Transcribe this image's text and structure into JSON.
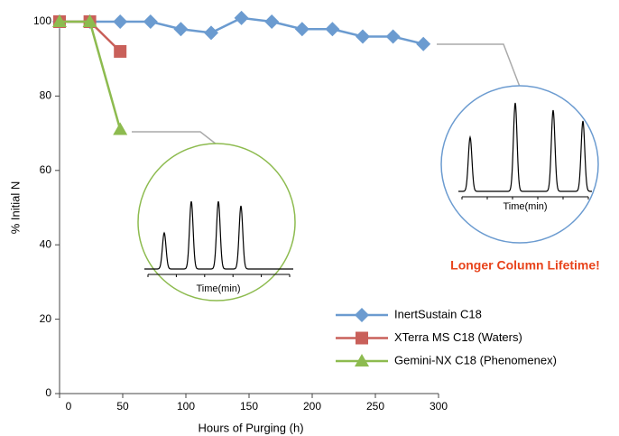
{
  "chart_data": {
    "type": "line",
    "x_label": "Hours of Purging (h)",
    "y_label": "% Initial N",
    "xlim": [
      0,
      300
    ],
    "xticks": [
      0,
      50,
      100,
      150,
      200,
      250,
      300
    ],
    "ylim": [
      0,
      100
    ],
    "yticks": [
      0,
      20,
      40,
      60,
      80,
      100
    ],
    "grid": false,
    "legend": "lower right",
    "series": [
      {
        "name": "InertSustain C18",
        "color": "#6b9bd0",
        "marker": "diamond",
        "x": [
          0,
          24,
          48,
          72,
          96,
          120,
          144,
          168,
          192,
          216,
          240,
          264,
          288
        ],
        "values": [
          100,
          100,
          100,
          100,
          98,
          97,
          101,
          100,
          98,
          98,
          96,
          96,
          94
        ]
      },
      {
        "name": "XTerra MS C18 (Waters)",
        "color": "#c9605a",
        "marker": "square",
        "x": [
          0,
          24,
          48
        ],
        "values": [
          100,
          100,
          92
        ]
      },
      {
        "name": "Gemini-NX C18 (Phenomenex)",
        "color": "#8dbb4f",
        "marker": "triangle",
        "x": [
          0,
          24,
          48
        ],
        "values": [
          100,
          100,
          71
        ]
      }
    ],
    "annotations": {
      "highlight": "Longer Column Lifetime!",
      "highlight_color": "#e8441c",
      "inset_axis_label": "Time(min)"
    }
  }
}
